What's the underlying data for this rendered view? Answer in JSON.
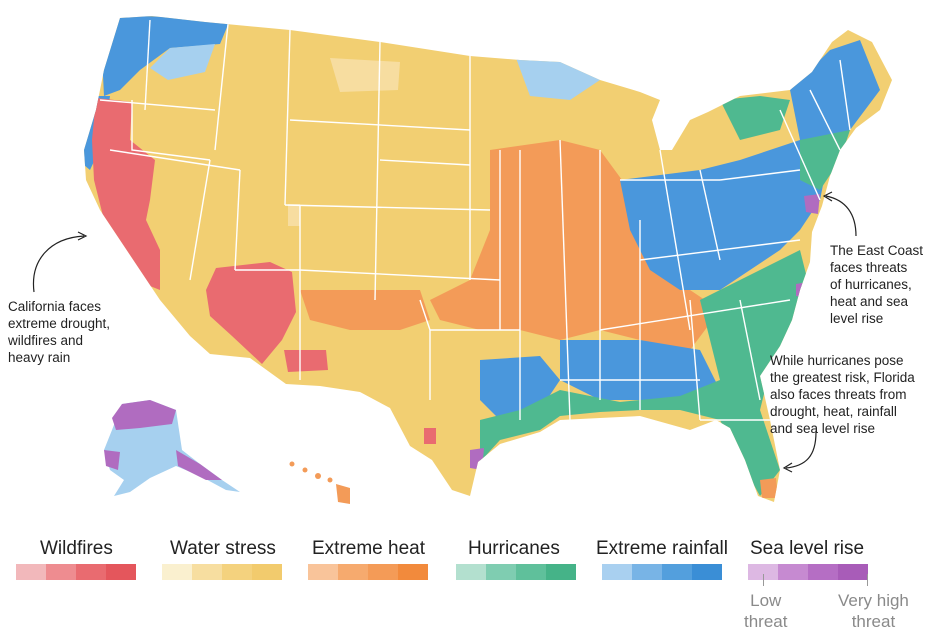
{
  "annotations": {
    "california": "California faces\nextreme drought,\nwildfires and\nheavy rain",
    "east_coast": "The East Coast\nfaces threats\nof hurricanes,\nheat and sea\nlevel rise",
    "florida": "While hurricanes pose\nthe greatest risk, Florida\nalso faces threats from\ndrought, heat, rainfall\nand sea level rise"
  },
  "legend": {
    "categories": [
      {
        "label": "Wildfires",
        "colors": [
          "#f2b8bb",
          "#ee8c90",
          "#e96b70",
          "#e4565c"
        ]
      },
      {
        "label": "Water stress",
        "colors": [
          "#faf0cf",
          "#f7dea0",
          "#f4d27e",
          "#f2cb6d"
        ]
      },
      {
        "label": "Extreme heat",
        "colors": [
          "#f9c49a",
          "#f6aa6e",
          "#f49b57",
          "#f28a3c"
        ]
      },
      {
        "label": "Hurricanes",
        "colors": [
          "#b3e0cf",
          "#7fcdb1",
          "#5fc09b",
          "#45b388"
        ]
      },
      {
        "label": "Extreme rainfall",
        "colors": [
          "#a9d0f0",
          "#78b4e6",
          "#539fdd",
          "#3a8ed6"
        ]
      },
      {
        "label": "Sea level rise",
        "colors": [
          "#ddb8e3",
          "#c68ad1",
          "#b56ec4",
          "#a85cb8"
        ]
      }
    ],
    "low_label": "Low\nthreat",
    "high_label": "Very high\nthreat"
  },
  "colors": {
    "wildfire": "#e96b70",
    "water": "#f2cf72",
    "water_light": "#f7dda0",
    "heat": "#f39b58",
    "hurricane": "#4fb990",
    "rain": "#4a97dc",
    "sea": "#b06cc0",
    "ice": "#a6d0ef"
  }
}
